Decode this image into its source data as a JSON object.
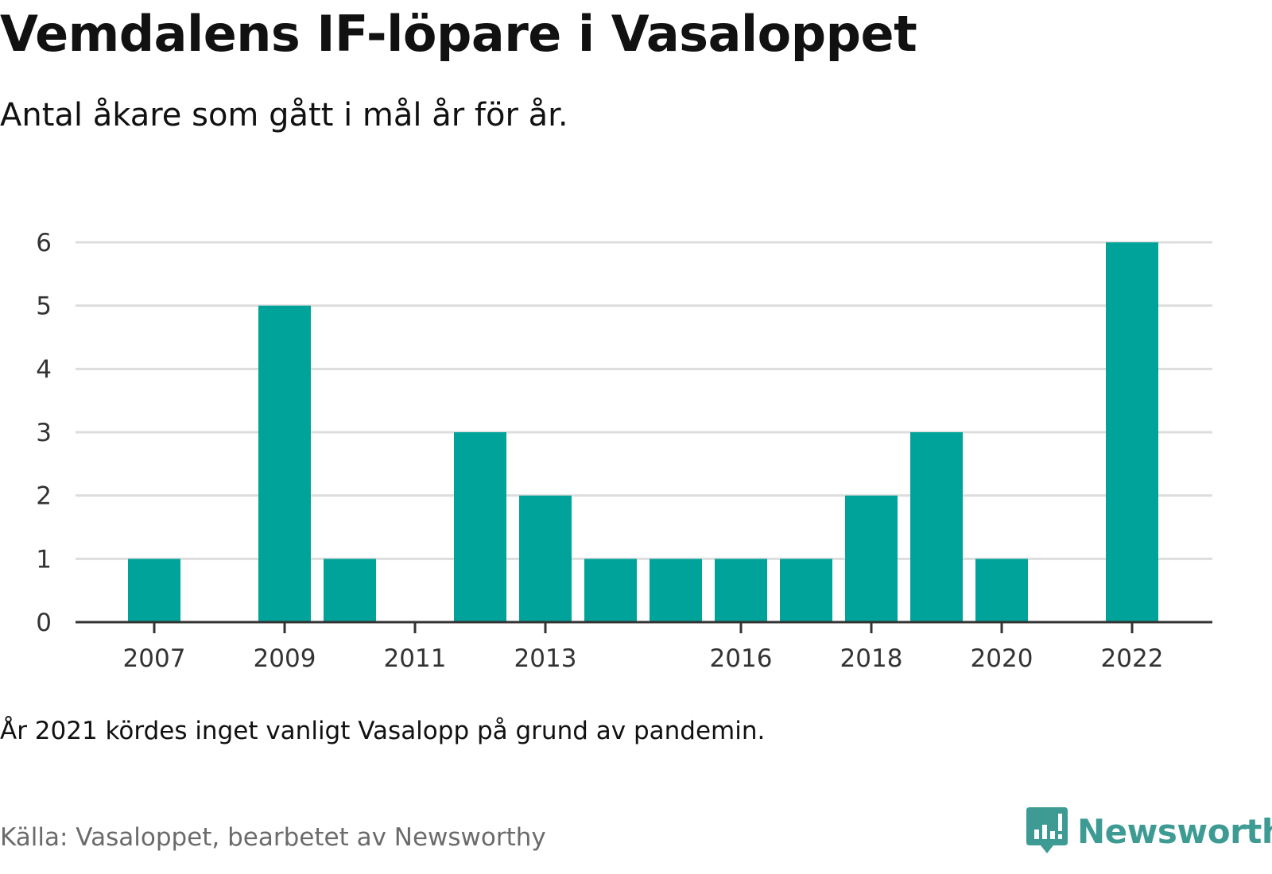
{
  "header": {
    "title": "Vemdalens IF-löpare i Vasaloppet",
    "subtitle": "Antal åkare som gått i mål år för år."
  },
  "footer": {
    "note": "År 2021 kördes inget vanligt Vasalopp på grund av pandemin.",
    "source": "Källa: Vasaloppet, bearbetet av Newsworthy",
    "brand": "Newsworthy",
    "brand_icon": "bar-chart-speech-bubble-icon"
  },
  "colors": {
    "bar": "#00a39a",
    "grid": "#dddddd",
    "axis": "#333333",
    "brand": "#3d9b94"
  },
  "chart_data": {
    "type": "bar",
    "categories": [
      2007,
      2008,
      2009,
      2010,
      2011,
      2012,
      2013,
      2014,
      2015,
      2016,
      2017,
      2018,
      2019,
      2020,
      2021,
      2022
    ],
    "values": [
      1,
      0,
      5,
      1,
      0,
      3,
      2,
      1,
      1,
      1,
      1,
      2,
      3,
      1,
      0,
      6
    ],
    "x_tick_labels": [
      "2007",
      "2009",
      "2011",
      "2013",
      "2016",
      "2018",
      "2020",
      "2022"
    ],
    "y_ticks": [
      0,
      1,
      2,
      3,
      4,
      5,
      6
    ],
    "ylim": [
      0,
      6
    ],
    "grid": true,
    "legend": "none"
  }
}
